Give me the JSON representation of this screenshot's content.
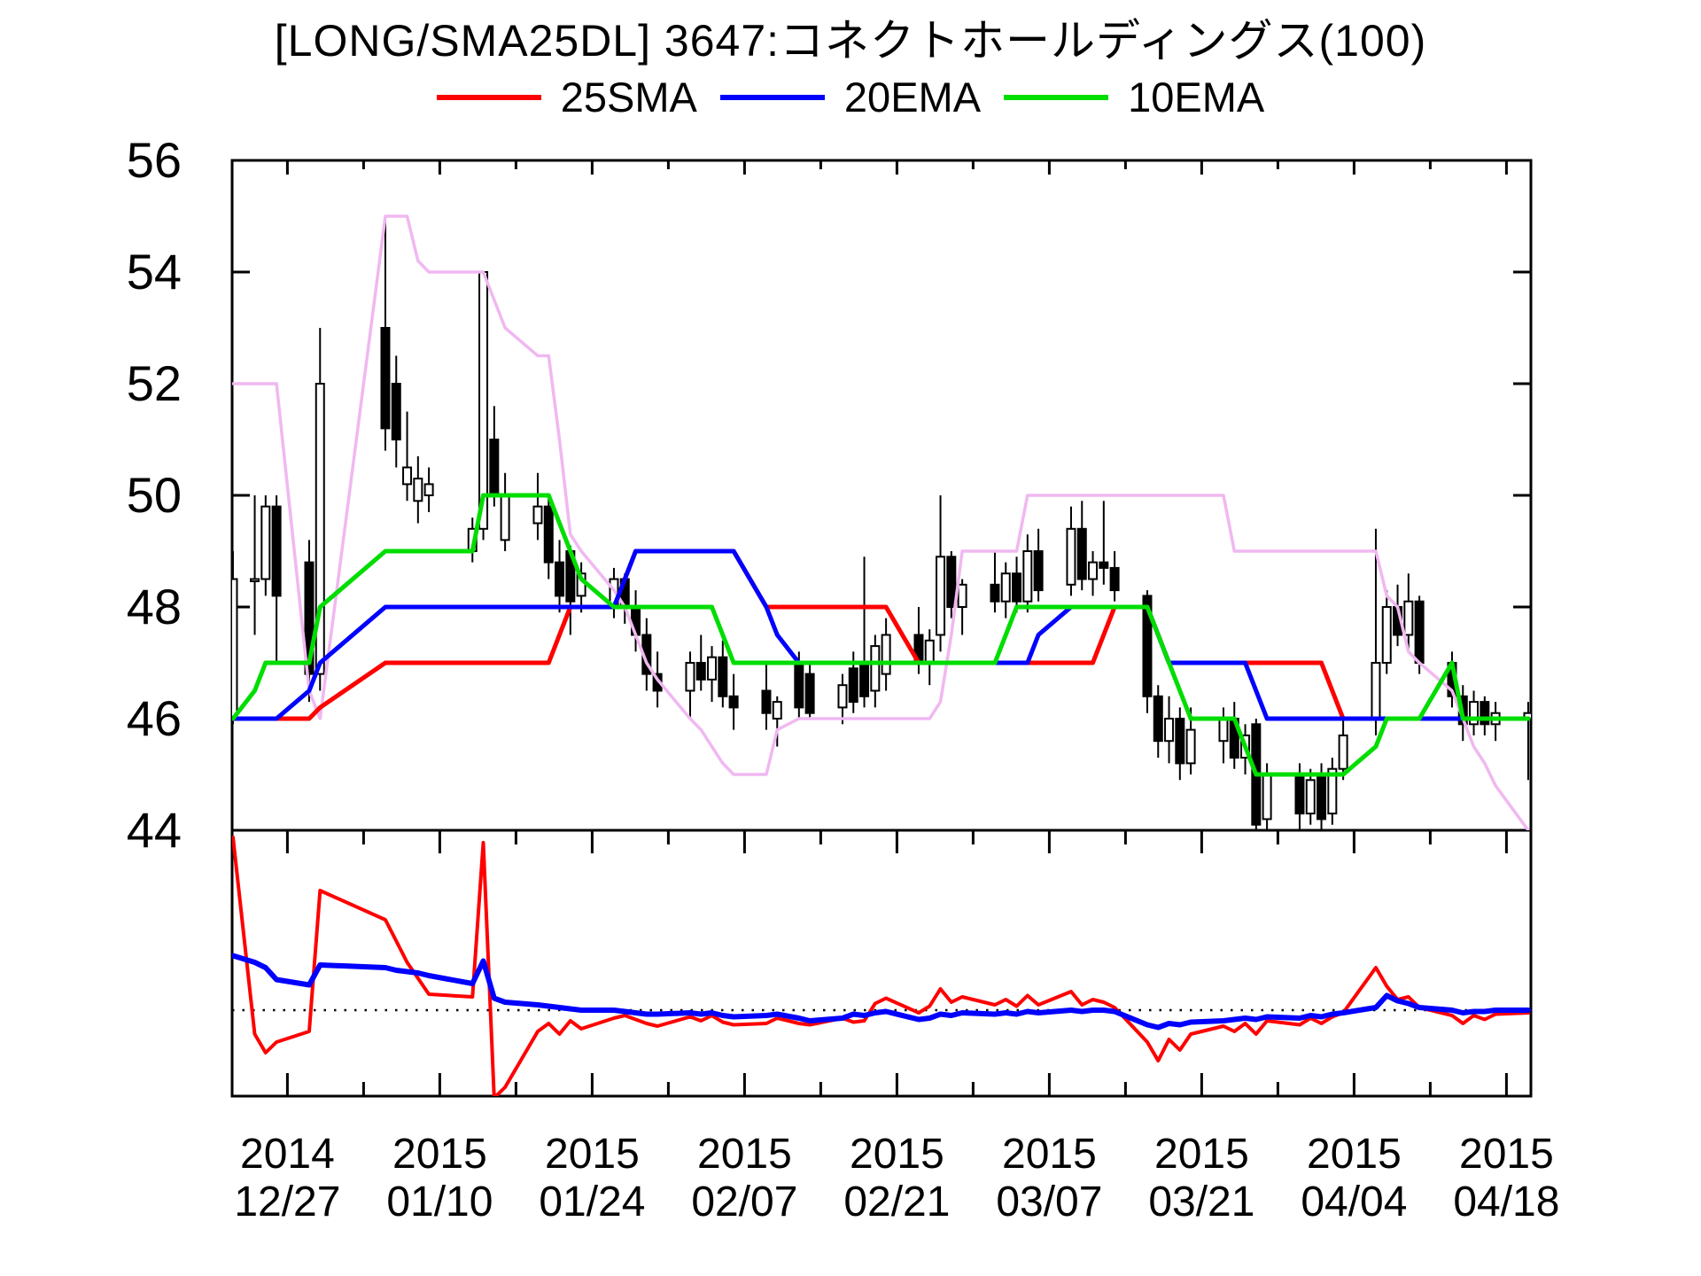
{
  "chart_data": {
    "type": "candlestick+line",
    "title": "[LONG/SMA25DL] 3647:コネクトホールディングス(100)",
    "legend": [
      {
        "label": "25SMA",
        "color": "#fe0000"
      },
      {
        "label": "20EMA",
        "color": "#0000fe"
      },
      {
        "label": "10EMA",
        "color": "#00dd00"
      }
    ],
    "envelope_color": "#f0b8f0",
    "ylabel": "",
    "ylim": [
      44,
      56
    ],
    "y_ticks": [
      44,
      46,
      48,
      50,
      52,
      54,
      56
    ],
    "x_major_ticks": [
      {
        "d": 0,
        "year": "2014",
        "date": "12/27"
      },
      {
        "d": 14,
        "year": "2015",
        "date": "01/10"
      },
      {
        "d": 28,
        "year": "2015",
        "date": "01/24"
      },
      {
        "d": 42,
        "year": "2015",
        "date": "02/07"
      },
      {
        "d": 56,
        "year": "2015",
        "date": "02/21"
      },
      {
        "d": 70,
        "year": "2015",
        "date": "03/07"
      },
      {
        "d": 84,
        "year": "2015",
        "date": "03/21"
      },
      {
        "d": 98,
        "year": "2015",
        "date": "04/04"
      },
      {
        "d": 112,
        "year": "2015",
        "date": "04/18"
      }
    ],
    "x_minor_ticks_d": [
      7,
      21,
      35,
      49,
      63,
      77,
      91,
      105
    ],
    "dates": [
      "12/22",
      "12/24",
      "12/25",
      "12/26",
      "12/29",
      "12/30",
      "01/05",
      "01/06",
      "01/07",
      "01/08",
      "01/09",
      "01/13",
      "01/14",
      "01/15",
      "01/16",
      "01/19",
      "01/20",
      "01/21",
      "01/22",
      "01/23",
      "01/26",
      "01/27",
      "01/28",
      "01/29",
      "01/30",
      "02/02",
      "02/03",
      "02/04",
      "02/05",
      "02/06",
      "02/09",
      "02/10",
      "02/12",
      "02/13",
      "02/16",
      "02/17",
      "02/18",
      "02/19",
      "02/20",
      "02/23",
      "02/24",
      "02/25",
      "02/26",
      "02/27",
      "03/02",
      "03/03",
      "03/04",
      "03/05",
      "03/06",
      "03/09",
      "03/10",
      "03/11",
      "03/12",
      "03/13",
      "03/16",
      "03/17",
      "03/18",
      "03/19",
      "03/20",
      "03/23",
      "03/24",
      "03/25",
      "03/26",
      "03/27",
      "03/30",
      "03/31",
      "04/01",
      "04/02",
      "04/03",
      "04/06",
      "04/07",
      "04/08",
      "04/09",
      "04/10",
      "04/13",
      "04/14",
      "04/15",
      "04/16",
      "04/17",
      "04/20"
    ],
    "day_offset": [
      -5,
      -3,
      -2,
      -1,
      2,
      3,
      9,
      10,
      11,
      12,
      13,
      17,
      18,
      19,
      20,
      23,
      24,
      25,
      26,
      27,
      30,
      31,
      32,
      33,
      34,
      37,
      38,
      39,
      40,
      41,
      44,
      45,
      47,
      48,
      51,
      52,
      53,
      54,
      55,
      58,
      59,
      60,
      61,
      62,
      65,
      66,
      67,
      68,
      69,
      72,
      73,
      74,
      75,
      76,
      79,
      80,
      81,
      82,
      83,
      86,
      87,
      88,
      89,
      90,
      93,
      94,
      95,
      96,
      97,
      100,
      101,
      102,
      103,
      104,
      107,
      108,
      109,
      110,
      111,
      114
    ],
    "ohlc": [
      [
        46,
        49,
        45.9,
        48.5
      ],
      [
        48.5,
        50,
        47.5,
        48.5
      ],
      [
        48.5,
        50,
        48.2,
        49.8
      ],
      [
        49.8,
        50,
        47,
        48.2
      ],
      [
        48.8,
        49.2,
        46.3,
        46.8
      ],
      [
        46.8,
        53,
        46.5,
        52
      ],
      [
        53,
        54.9,
        50.8,
        51.2
      ],
      [
        52,
        52.5,
        50.5,
        51
      ],
      [
        50.2,
        51.5,
        49.9,
        50.5
      ],
      [
        49.9,
        50.7,
        49.5,
        50.3
      ],
      [
        50,
        50.5,
        49.7,
        50.2
      ],
      [
        49,
        49.6,
        48.8,
        49.4
      ],
      [
        49.4,
        54,
        49.2,
        54
      ],
      [
        51,
        51.6,
        49.8,
        50
      ],
      [
        49.2,
        50.4,
        49,
        50
      ],
      [
        49.5,
        50.4,
        49.2,
        49.8
      ],
      [
        49.8,
        50,
        48.5,
        48.8
      ],
      [
        48.8,
        49.2,
        47.9,
        48.2
      ],
      [
        49,
        49.1,
        47.5,
        48.1
      ],
      [
        48.2,
        48.8,
        47.9,
        48.6
      ],
      [
        48,
        48.7,
        47.8,
        48.5
      ],
      [
        48.5,
        48.6,
        47.7,
        48
      ],
      [
        48,
        48.3,
        47.2,
        47.5
      ],
      [
        47.5,
        47.8,
        46.5,
        46.8
      ],
      [
        46.8,
        47.2,
        46.2,
        46.5
      ],
      [
        46.5,
        47.2,
        46,
        47
      ],
      [
        47,
        47.5,
        46.5,
        46.7
      ],
      [
        46.7,
        47.3,
        46.3,
        47.1
      ],
      [
        47.1,
        47.4,
        46.2,
        46.4
      ],
      [
        46.4,
        46.8,
        45.8,
        46.2
      ],
      [
        46.5,
        47,
        45.8,
        46.1
      ],
      [
        46,
        46.4,
        45.5,
        46.3
      ],
      [
        47,
        47.2,
        46,
        46.2
      ],
      [
        46.8,
        47,
        46,
        46.1
      ],
      [
        46.2,
        46.8,
        45.9,
        46.6
      ],
      [
        46.9,
        47.2,
        46.1,
        46.3
      ],
      [
        47,
        48.9,
        46.2,
        46.4
      ],
      [
        46.5,
        47.5,
        46.2,
        47.3
      ],
      [
        46.8,
        47.8,
        46.5,
        47.5
      ],
      [
        47.5,
        48,
        46.8,
        47
      ],
      [
        47,
        47.6,
        46.6,
        47.4
      ],
      [
        47.5,
        50,
        47.2,
        48.9
      ],
      [
        48.9,
        49,
        47.8,
        48
      ],
      [
        48,
        48.5,
        47.5,
        48.4
      ],
      [
        48.4,
        49,
        47.9,
        48.1
      ],
      [
        48.1,
        48.8,
        47.8,
        48.6
      ],
      [
        48.6,
        48.9,
        47.9,
        48.1
      ],
      [
        48.1,
        49.3,
        47.9,
        49
      ],
      [
        49,
        49.4,
        48.1,
        48.3
      ],
      [
        48.4,
        49.8,
        48.2,
        49.4
      ],
      [
        49.4,
        49.9,
        48.3,
        48.5
      ],
      [
        48.5,
        49,
        48.2,
        48.8
      ],
      [
        48.8,
        49.9,
        48.4,
        48.7
      ],
      [
        48.7,
        49,
        48.1,
        48.3
      ],
      [
        48.2,
        48.3,
        46.1,
        46.4
      ],
      [
        46.4,
        46.6,
        45.3,
        45.6
      ],
      [
        45.6,
        46.4,
        45.2,
        46
      ],
      [
        46,
        46.2,
        44.9,
        45.2
      ],
      [
        45.2,
        46.2,
        45,
        45.8
      ],
      [
        45.6,
        46.2,
        45.2,
        46
      ],
      [
        46,
        46.3,
        45.1,
        45.3
      ],
      [
        45.3,
        45.9,
        45,
        45.7
      ],
      [
        45.9,
        46,
        43.9,
        44.1
      ],
      [
        44.2,
        45.2,
        44,
        45
      ],
      [
        45,
        45.2,
        44,
        44.3
      ],
      [
        44.3,
        45.1,
        44.1,
        44.9
      ],
      [
        45,
        45.2,
        44,
        44.2
      ],
      [
        44.3,
        45.3,
        44.1,
        45.1
      ],
      [
        45.1,
        46,
        44.9,
        45.7
      ],
      [
        46,
        49.4,
        45.7,
        47
      ],
      [
        47,
        48.3,
        46.8,
        48
      ],
      [
        48,
        48.4,
        47.3,
        47.5
      ],
      [
        47.5,
        48.6,
        47.2,
        48.1
      ],
      [
        48.1,
        48.2,
        46.8,
        47
      ],
      [
        47,
        47.2,
        46.2,
        46.4
      ],
      [
        46.4,
        46.6,
        45.6,
        45.9
      ],
      [
        45.9,
        46.5,
        45.7,
        46.3
      ],
      [
        46.3,
        46.4,
        45.7,
        45.9
      ],
      [
        45.9,
        46.3,
        45.6,
        46.1
      ],
      [
        46,
        46.3,
        44.9,
        46.1
      ]
    ],
    "sma25": [
      46,
      46,
      46,
      46,
      46,
      46.2,
      47,
      47,
      47,
      47,
      47,
      47,
      47,
      47,
      47,
      47,
      47,
      47.5,
      48,
      48,
      48,
      48.5,
      49,
      49,
      49,
      49,
      49,
      49,
      49,
      49,
      48,
      48,
      48,
      48,
      48,
      48,
      48,
      48,
      48,
      47,
      47,
      47,
      47,
      47,
      47,
      47,
      47,
      47,
      47,
      47,
      47,
      47,
      47.5,
      48,
      48,
      47.5,
      47,
      47,
      47,
      47,
      47,
      47,
      47,
      47,
      47,
      47,
      47,
      46.5,
      46,
      46,
      46,
      46,
      46,
      46,
      46,
      46,
      46,
      46,
      46,
      46
    ],
    "ema20": [
      46,
      46,
      46,
      46,
      46.5,
      47,
      48,
      48,
      48,
      48,
      48,
      48,
      48,
      48,
      48,
      48,
      48,
      48,
      48,
      48,
      48,
      48.5,
      49,
      49,
      49,
      49,
      49,
      49,
      49,
      49,
      48,
      47.5,
      47,
      47,
      47,
      47,
      47,
      47,
      47,
      47,
      47,
      47,
      47,
      47,
      47,
      47,
      47,
      47,
      47.5,
      48,
      48,
      48,
      48,
      48,
      48,
      47.5,
      47,
      47,
      47,
      47,
      47,
      47,
      46.5,
      46,
      46,
      46,
      46,
      46,
      46,
      46,
      46,
      46,
      46,
      46,
      46,
      46,
      46,
      46,
      46,
      46
    ],
    "ema10": [
      46,
      46.5,
      47,
      47,
      47,
      48,
      49,
      49,
      49,
      49,
      49,
      49,
      50,
      50,
      50,
      50,
      50,
      49.5,
      49,
      48.5,
      48,
      48,
      48,
      48,
      48,
      48,
      48,
      48,
      47.5,
      47,
      47,
      47,
      47,
      47,
      47,
      47,
      47,
      47,
      47,
      47,
      47,
      47,
      47,
      47,
      47,
      47.5,
      48,
      48,
      48,
      48,
      48,
      48,
      48,
      48,
      48,
      47.5,
      47,
      46.5,
      46,
      46,
      46,
      45.5,
      45,
      45,
      45,
      45,
      45,
      45,
      45,
      45.5,
      46,
      46,
      46,
      46,
      47,
      46,
      46,
      46,
      46,
      46
    ],
    "envelope": [
      52,
      52,
      52,
      52,
      46.5,
      46,
      55,
      55,
      55,
      54.2,
      54,
      54,
      54,
      53.5,
      53,
      52.5,
      52.5,
      51,
      49.3,
      49,
      48.3,
      48,
      47.5,
      47,
      46.7,
      46,
      45.8,
      45.5,
      45.2,
      45,
      45,
      45.8,
      46,
      46,
      46,
      46,
      46,
      46,
      46,
      46,
      46,
      46.3,
      47.5,
      49,
      49,
      49,
      49,
      50,
      50,
      50,
      50,
      50,
      50,
      50,
      50,
      50,
      50,
      50,
      50,
      50,
      49,
      49,
      49,
      49,
      49,
      49,
      49,
      49,
      49,
      49,
      48.2,
      48,
      47.2,
      47,
      46.5,
      46,
      45.5,
      45.2,
      44.8,
      44
    ],
    "oscillator": {
      "zero_line": 0,
      "range": [
        -3.3,
        6.55
      ],
      "red": [
        6.5,
        -0.9,
        -1.6,
        -1.2,
        -0.8,
        4.5,
        3.4,
        2.6,
        1.8,
        1.2,
        0.6,
        0.5,
        6.3,
        -3.3,
        -2.9,
        -0.8,
        -0.5,
        -0.9,
        -0.4,
        -0.7,
        -0.3,
        -0.2,
        -0.35,
        -0.5,
        -0.6,
        -0.25,
        -0.4,
        -0.2,
        -0.45,
        -0.55,
        -0.5,
        -0.3,
        -0.5,
        -0.55,
        -0.3,
        -0.45,
        -0.4,
        0.25,
        0.45,
        -0.1,
        0.15,
        0.8,
        0.3,
        0.5,
        0.2,
        0.4,
        0.15,
        0.55,
        0.2,
        0.7,
        0.2,
        0.4,
        0.3,
        0.1,
        -1.2,
        -1.9,
        -1.1,
        -1.5,
        -0.9,
        -0.6,
        -0.8,
        -0.5,
        -0.9,
        -0.4,
        -0.55,
        -0.3,
        -0.5,
        -0.25,
        -0.1,
        1.6,
        0.9,
        0.4,
        0.5,
        0.1,
        -0.2,
        -0.5,
        -0.2,
        -0.35,
        -0.15,
        -0.1
      ],
      "blue": [
        2.05,
        1.8,
        1.6,
        1.15,
        0.95,
        1.7,
        1.6,
        1.5,
        1.45,
        1.4,
        1.3,
        1.0,
        1.85,
        0.45,
        0.3,
        0.2,
        0.15,
        0.1,
        0.05,
        0,
        0,
        -0.05,
        -0.1,
        -0.15,
        -0.15,
        -0.1,
        -0.15,
        -0.1,
        -0.2,
        -0.25,
        -0.2,
        -0.15,
        -0.3,
        -0.4,
        -0.3,
        -0.15,
        -0.2,
        -0.1,
        -0.05,
        -0.35,
        -0.3,
        -0.15,
        -0.2,
        -0.1,
        -0.15,
        -0.1,
        -0.15,
        -0.05,
        -0.1,
        0,
        -0.05,
        0,
        0,
        -0.05,
        -0.55,
        -0.65,
        -0.5,
        -0.55,
        -0.45,
        -0.4,
        -0.35,
        -0.3,
        -0.35,
        -0.25,
        -0.3,
        -0.2,
        -0.25,
        -0.15,
        -0.1,
        0.1,
        0.55,
        0.35,
        0.25,
        0.1,
        0,
        -0.1,
        -0.05,
        -0.05,
        0,
        0
      ]
    }
  }
}
